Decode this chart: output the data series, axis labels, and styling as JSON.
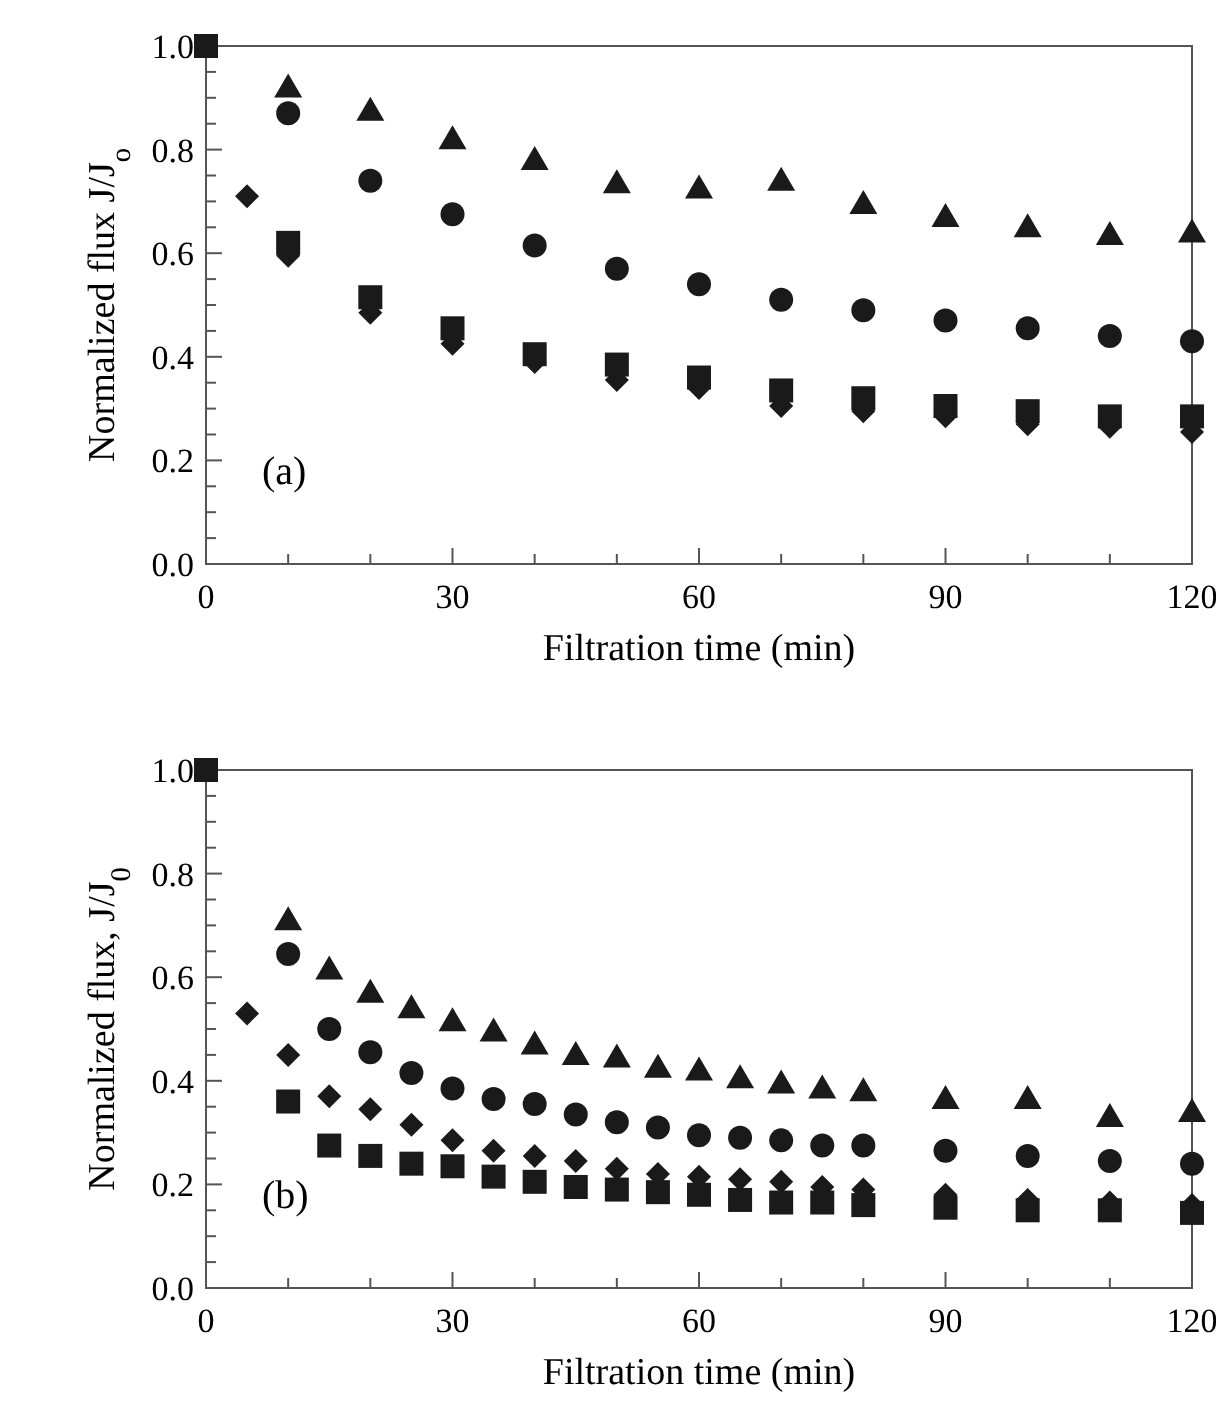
{
  "chart_data": [
    {
      "type": "scatter",
      "xlabel": "Filtration time (min)",
      "ylabel": "Normalized flux J/J$_{o}$",
      "annotations": [
        "(a)"
      ],
      "xlim": [
        0,
        120
      ],
      "ylim": [
        0,
        1
      ],
      "xticks": [
        0,
        {
          "value": 10,
          "label": null
        },
        {
          "value": 20,
          "label": null
        },
        30,
        {
          "value": 40,
          "label": null
        },
        {
          "value": 50,
          "label": null
        },
        60,
        {
          "value": 70,
          "label": null
        },
        {
          "value": 80,
          "label": null
        },
        90,
        {
          "value": 100,
          "label": null
        },
        {
          "value": 110,
          "label": null
        },
        120
      ],
      "yticks": [
        {
          "value": 0,
          "label": "0.0"
        },
        {
          "value": 0.05,
          "label": null
        },
        {
          "value": 0.1,
          "label": null
        },
        {
          "value": 0.15,
          "label": null
        },
        {
          "value": 0.2,
          "label": "0.2"
        },
        {
          "value": 0.25,
          "label": null
        },
        {
          "value": 0.3,
          "label": null
        },
        {
          "value": 0.35,
          "label": null
        },
        {
          "value": 0.4,
          "label": "0.4"
        },
        {
          "value": 0.45,
          "label": null
        },
        {
          "value": 0.5,
          "label": null
        },
        {
          "value": 0.55,
          "label": null
        },
        {
          "value": 0.6,
          "label": "0.6"
        },
        {
          "value": 0.65,
          "label": null
        },
        {
          "value": 0.7,
          "label": null
        },
        {
          "value": 0.75,
          "label": null
        },
        {
          "value": 0.8,
          "label": "0.8"
        },
        {
          "value": 0.85,
          "label": null
        },
        {
          "value": 0.9,
          "label": null
        },
        {
          "value": 0.95,
          "label": null
        },
        {
          "value": 1,
          "label": "1.0"
        }
      ],
      "series": [
        {
          "color": "#1a1a1a",
          "marker": "triangle",
          "x": [
            10,
            20,
            30,
            40,
            50,
            60,
            70,
            80,
            90,
            100,
            110,
            120
          ],
          "values": [
            0.92,
            0.875,
            0.82,
            0.78,
            0.735,
            0.725,
            0.74,
            0.695,
            0.67,
            0.65,
            0.635,
            0.64
          ]
        },
        {
          "color": "#1a1a1a",
          "marker": "circle",
          "x": [
            10,
            20,
            30,
            40,
            50,
            60,
            70,
            80,
            90,
            100,
            110,
            120
          ],
          "values": [
            0.87,
            0.74,
            0.675,
            0.615,
            0.57,
            0.54,
            0.51,
            0.49,
            0.47,
            0.455,
            0.44,
            0.43
          ]
        },
        {
          "color": "#1a1a1a",
          "marker": "diamond",
          "x": [
            5,
            10,
            20,
            30,
            40,
            50,
            60,
            70,
            80,
            90,
            100,
            110,
            120
          ],
          "values": [
            0.71,
            0.595,
            0.485,
            0.425,
            0.39,
            0.355,
            0.34,
            0.305,
            0.295,
            0.285,
            0.27,
            0.265,
            0.255
          ]
        },
        {
          "color": "#1a1a1a",
          "marker": "square",
          "x": [
            0,
            10,
            20,
            30,
            40,
            50,
            60,
            70,
            80,
            90,
            100,
            110,
            120
          ],
          "values": [
            1,
            0.62,
            0.515,
            0.455,
            0.405,
            0.385,
            0.36,
            0.335,
            0.32,
            0.305,
            0.295,
            0.285,
            0.285
          ]
        }
      ]
    },
    {
      "type": "scatter",
      "xlabel": "Filtration time (min)",
      "ylabel": "Normalized flux, J/J$_{0}$",
      "annotations": [
        "(b)"
      ],
      "xlim": [
        0,
        120
      ],
      "ylim": [
        0,
        1
      ],
      "xticks": [
        0,
        {
          "value": 10,
          "label": null
        },
        {
          "value": 20,
          "label": null
        },
        30,
        {
          "value": 40,
          "label": null
        },
        {
          "value": 50,
          "label": null
        },
        60,
        {
          "value": 70,
          "label": null
        },
        {
          "value": 80,
          "label": null
        },
        90,
        {
          "value": 100,
          "label": null
        },
        {
          "value": 110,
          "label": null
        },
        120
      ],
      "yticks": [
        {
          "value": 0,
          "label": "0.0"
        },
        {
          "value": 0.05,
          "label": null
        },
        {
          "value": 0.1,
          "label": null
        },
        {
          "value": 0.15,
          "label": null
        },
        {
          "value": 0.2,
          "label": "0.2"
        },
        {
          "value": 0.25,
          "label": null
        },
        {
          "value": 0.3,
          "label": null
        },
        {
          "value": 0.35,
          "label": null
        },
        {
          "value": 0.4,
          "label": "0.4"
        },
        {
          "value": 0.45,
          "label": null
        },
        {
          "value": 0.5,
          "label": null
        },
        {
          "value": 0.55,
          "label": null
        },
        {
          "value": 0.6,
          "label": "0.6"
        },
        {
          "value": 0.65,
          "label": null
        },
        {
          "value": 0.7,
          "label": null
        },
        {
          "value": 0.75,
          "label": null
        },
        {
          "value": 0.8,
          "label": "0.8"
        },
        {
          "value": 0.85,
          "label": null
        },
        {
          "value": 0.9,
          "label": null
        },
        {
          "value": 0.95,
          "label": null
        },
        {
          "value": 1,
          "label": "1.0"
        }
      ],
      "series": [
        {
          "color": "#1a1a1a",
          "marker": "triangle",
          "x": [
            10,
            15,
            20,
            25,
            30,
            35,
            40,
            45,
            50,
            55,
            60,
            65,
            70,
            75,
            80,
            90,
            100,
            110,
            120
          ],
          "values": [
            0.71,
            0.615,
            0.57,
            0.54,
            0.515,
            0.495,
            0.47,
            0.45,
            0.445,
            0.425,
            0.42,
            0.405,
            0.395,
            0.385,
            0.38,
            0.365,
            0.365,
            0.33,
            0.34
          ]
        },
        {
          "color": "#1a1a1a",
          "marker": "circle",
          "x": [
            10,
            15,
            20,
            25,
            30,
            35,
            40,
            45,
            50,
            55,
            60,
            65,
            70,
            75,
            80,
            90,
            100,
            110,
            120
          ],
          "values": [
            0.645,
            0.5,
            0.455,
            0.415,
            0.385,
            0.365,
            0.355,
            0.335,
            0.32,
            0.31,
            0.295,
            0.29,
            0.285,
            0.275,
            0.275,
            0.265,
            0.255,
            0.245,
            0.24
          ]
        },
        {
          "color": "#1a1a1a",
          "marker": "diamond",
          "x": [
            5,
            10,
            15,
            20,
            25,
            30,
            35,
            40,
            45,
            50,
            55,
            60,
            65,
            70,
            75,
            80,
            90,
            100,
            110,
            120
          ],
          "values": [
            0.53,
            0.45,
            0.37,
            0.345,
            0.315,
            0.285,
            0.265,
            0.255,
            0.245,
            0.23,
            0.22,
            0.215,
            0.21,
            0.205,
            0.195,
            0.19,
            0.18,
            0.17,
            0.165,
            0.16
          ]
        },
        {
          "color": "#1a1a1a",
          "marker": "square",
          "x": [
            0,
            10,
            15,
            20,
            25,
            30,
            35,
            40,
            45,
            50,
            55,
            60,
            65,
            70,
            75,
            80,
            90,
            100,
            110,
            120
          ],
          "values": [
            1,
            0.36,
            0.275,
            0.255,
            0.24,
            0.235,
            0.215,
            0.205,
            0.195,
            0.19,
            0.185,
            0.18,
            0.17,
            0.165,
            0.165,
            0.16,
            0.155,
            0.15,
            0.15,
            0.145
          ]
        }
      ]
    }
  ]
}
